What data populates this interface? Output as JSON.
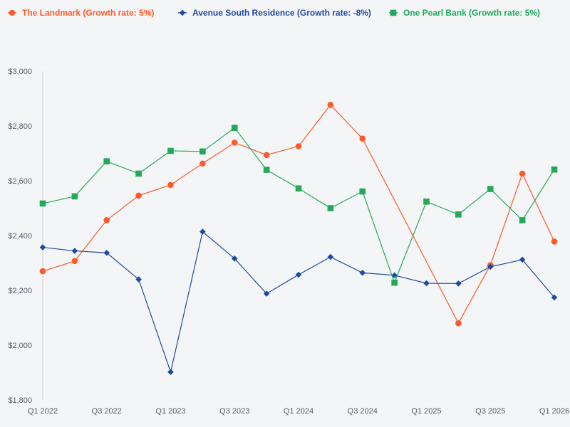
{
  "chart_data": {
    "type": "line",
    "title": "",
    "xlabel": "",
    "ylabel": "",
    "ylim": [
      1800,
      3000
    ],
    "y_ticks": [
      1800,
      2000,
      2200,
      2400,
      2600,
      2800,
      3000
    ],
    "y_tick_labels": [
      "$1,800",
      "$2,000",
      "$2,200",
      "$2,400",
      "$2,600",
      "$2,800",
      "$3,000"
    ],
    "x": [
      "Q1 2022",
      "Q2 2022",
      "Q3 2022",
      "Q4 2022",
      "Q1 2023",
      "Q2 2023",
      "Q3 2023",
      "Q4 2023",
      "Q1 2024",
      "Q2 2024",
      "Q3 2024",
      "Q4 2024",
      "Q1 2025",
      "Q2 2025",
      "Q3 2025",
      "Q4 2025",
      "Q1 2026"
    ],
    "x_tick_labels": [
      "Q1 2022",
      "",
      "Q3 2022",
      "",
      "Q1 2023",
      "",
      "Q3 2023",
      "",
      "Q1 2024",
      "",
      "Q3 2024",
      "",
      "Q1 2025",
      "",
      "Q3 2025",
      "",
      "Q1 2026"
    ],
    "grid": false,
    "legend_position": "top-left",
    "series": [
      {
        "name": "The Landmark (Growth rate: 5%)",
        "color": "#fc5a2a",
        "marker": "circle",
        "values": [
          2270,
          2307,
          2456,
          2546,
          2585,
          2663,
          2739,
          2694,
          2726,
          2877,
          2754,
          null,
          null,
          2080,
          2292,
          2626,
          2378
        ]
      },
      {
        "name": "Avenue South Residence (Growth rate: -8%)",
        "color": "#1f4aa0",
        "marker": "diamond",
        "values": [
          2357,
          2344,
          2337,
          2240,
          1902,
          2414,
          2316,
          2188,
          2257,
          2322,
          2264,
          2255,
          2226,
          2225,
          2286,
          2312,
          2174
        ]
      },
      {
        "name": "One Pearl Bank (Growth rate: 5%)",
        "color": "#22a95a",
        "marker": "square",
        "values": [
          2517,
          2543,
          2671,
          2626,
          2709,
          2707,
          2793,
          2640,
          2572,
          2500,
          2561,
          2228,
          2524,
          2477,
          2570,
          2456,
          2641
        ]
      }
    ]
  }
}
